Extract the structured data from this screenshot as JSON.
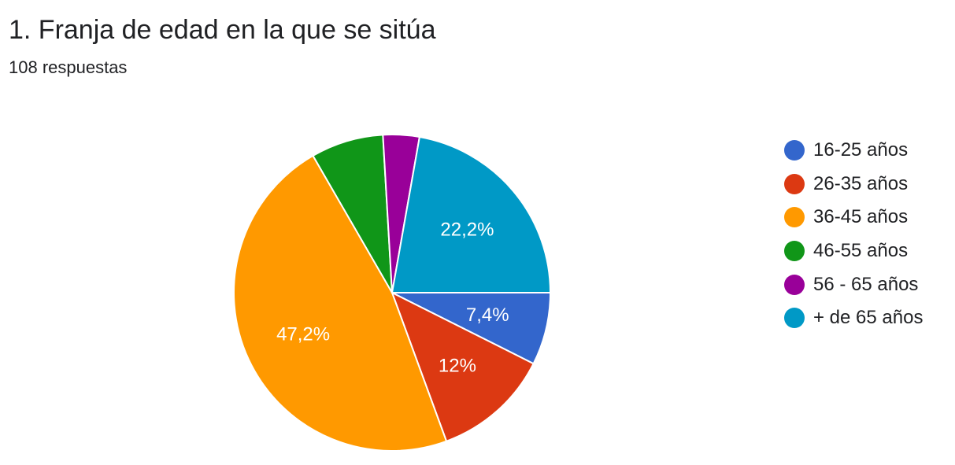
{
  "header": {
    "title": "1. Franja de edad en la que se sitúa",
    "responses": "108 respuestas"
  },
  "chart_data": {
    "type": "pie",
    "title": "1. Franja de edad en la que se sitúa",
    "subtitle": "108 respuestas",
    "legend_position": "right",
    "slices": [
      {
        "label": "16-25 años",
        "value": 7.4,
        "value_label": "7,4%",
        "color": "#3366cc",
        "show_label": true
      },
      {
        "label": "26-35 años",
        "value": 12.0,
        "value_label": "12%",
        "color": "#dc3912",
        "show_label": true
      },
      {
        "label": "36-45 años",
        "value": 47.2,
        "value_label": "47,2%",
        "color": "#ff9900",
        "show_label": true
      },
      {
        "label": "46-55 años",
        "value": 7.4,
        "value_label": "",
        "color": "#109618",
        "show_label": false
      },
      {
        "label": "56 - 65 años",
        "value": 3.7,
        "value_label": "",
        "color": "#990099",
        "show_label": false
      },
      {
        "label": "+ de 65 años",
        "value": 22.2,
        "value_label": "22,2%",
        "color": "#0099c6",
        "show_label": true
      }
    ]
  }
}
